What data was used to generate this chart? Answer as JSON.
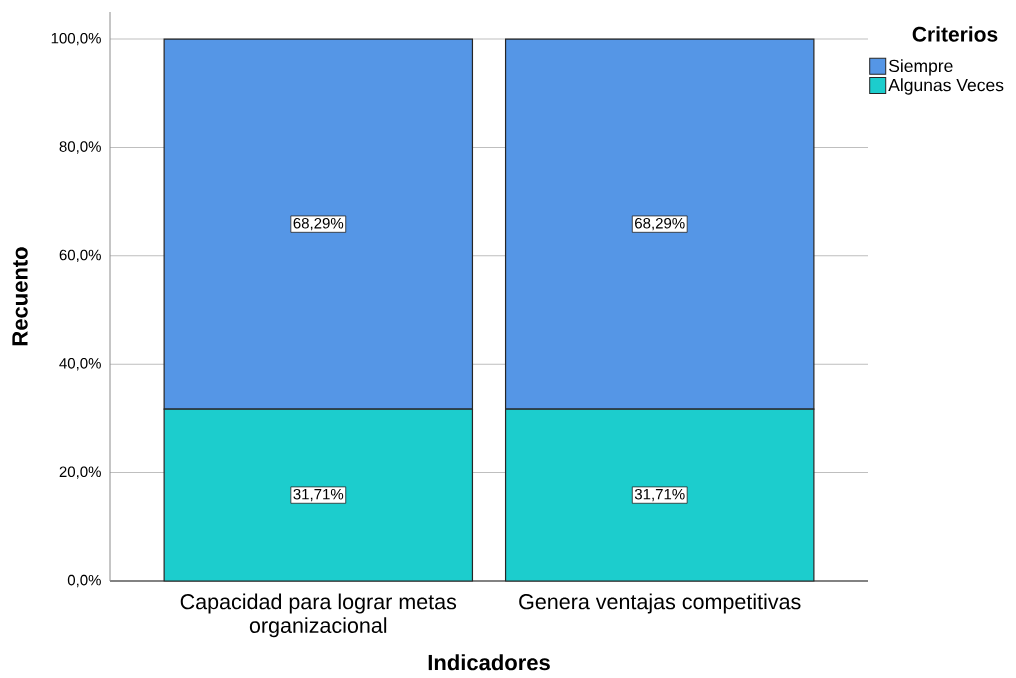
{
  "chart_data": {
    "type": "bar",
    "stacked": true,
    "xlabel": "Indicadores",
    "ylabel": "Recuento",
    "legend_title": "Criterios",
    "categories": [
      "Capacidad para lograr metas organizacional",
      "Genera ventajas competitivas"
    ],
    "series": [
      {
        "name": "Algunas Veces",
        "color": "#1ccdcd",
        "values": [
          31.71,
          31.71
        ],
        "value_labels": [
          "31,71%",
          "31,71%"
        ]
      },
      {
        "name": "Siempre",
        "color": "#5596e6",
        "values": [
          68.29,
          68.29
        ],
        "value_labels": [
          "68,29%",
          "68,29%"
        ]
      }
    ],
    "ylim": [
      0,
      105
    ],
    "yticks": [
      {
        "value": 0,
        "label": "0,0%"
      },
      {
        "value": 20,
        "label": "20,0%"
      },
      {
        "value": 40,
        "label": "40,0%"
      },
      {
        "value": 60,
        "label": "60,0%"
      },
      {
        "value": 80,
        "label": "80,0%"
      },
      {
        "value": 100,
        "label": "100,0%"
      }
    ],
    "grid": "y",
    "legend": "top right"
  }
}
